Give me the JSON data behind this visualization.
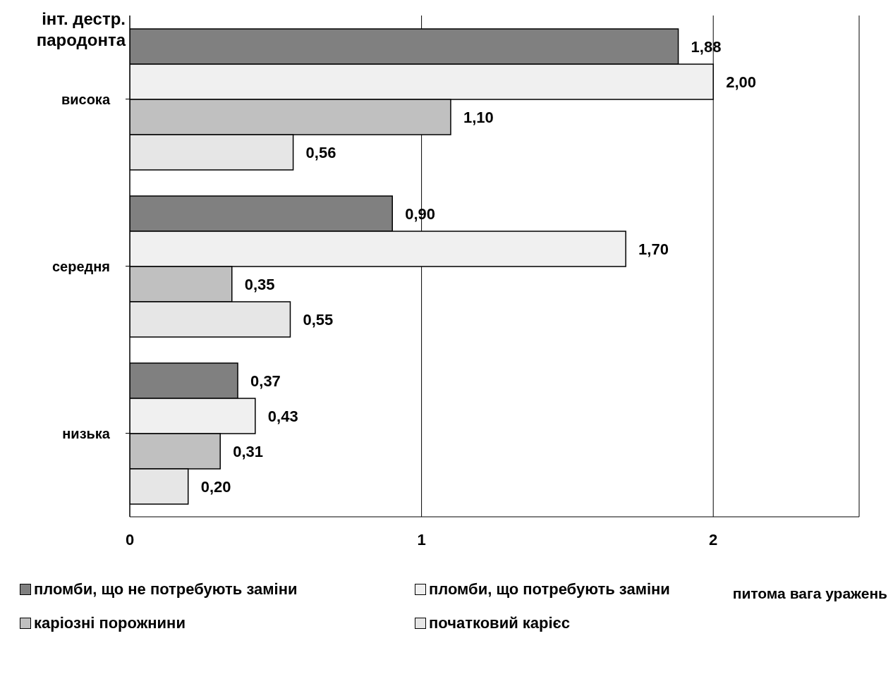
{
  "chart_data": {
    "type": "bar",
    "orientation": "horizontal",
    "ylabel": "інт. дестр. пародонта",
    "xlabel": "питома вага уражень",
    "categories": [
      "висока",
      "середня",
      "низька"
    ],
    "series": [
      {
        "name": "пломби, що не потребують заміни",
        "color": "#808080",
        "values": [
          1.88,
          0.9,
          0.37
        ],
        "value_labels": [
          "1,88",
          "0,90",
          "0,37"
        ]
      },
      {
        "name": "пломби, що потребують заміни",
        "color": "#f0f0f0",
        "values": [
          2.0,
          1.7,
          0.43
        ],
        "value_labels": [
          "2,00",
          "1,70",
          "0,43"
        ]
      },
      {
        "name": "каріозні порожнини",
        "color": "#c0c0c0",
        "values": [
          1.1,
          0.35,
          0.31
        ],
        "value_labels": [
          "1,10",
          "0,35",
          "0,31"
        ]
      },
      {
        "name": "початковий карієс",
        "color": "#e6e6e6",
        "values": [
          0.56,
          0.55,
          0.2
        ],
        "value_labels": [
          "0,56",
          "0,55",
          "0,20"
        ]
      }
    ],
    "xlim": [
      0,
      2.5
    ],
    "xticks": [
      0,
      1,
      2
    ],
    "grid": "x",
    "legend": "bottom"
  }
}
